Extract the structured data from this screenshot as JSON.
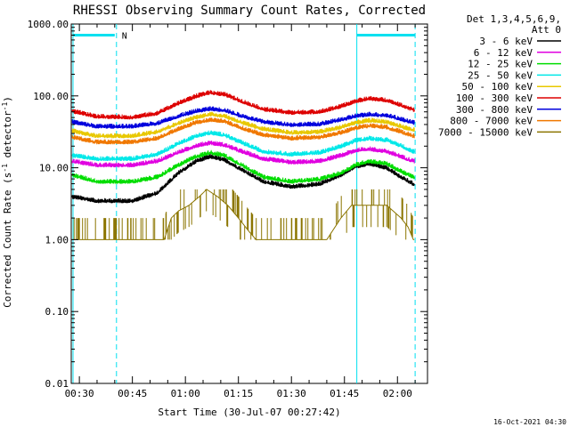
{
  "chart_data": {
    "type": "line",
    "title": "RHESSI Observing Summary Count Rates, Corrected",
    "xlabel": "Start Time (30-Jul-07 00:27:42)",
    "ylabel": "Corrected Count Rate (s-1 detector-1)",
    "ylabel_main": "Corrected Count Rate (s",
    "ylabel_sup1": "-1",
    "ylabel_mid": " detector",
    "ylabel_sup2": "-1",
    "ylabel_end": ")",
    "yscale": "log",
    "ylim": [
      0.01,
      1000
    ],
    "xlim_minutes": [
      27.7,
      128.5
    ],
    "x_ticks": [
      {
        "minute": 30,
        "label": "00:30"
      },
      {
        "minute": 45,
        "label": "00:45"
      },
      {
        "minute": 60,
        "label": "01:00"
      },
      {
        "minute": 75,
        "label": "01:15"
      },
      {
        "minute": 90,
        "label": "01:30"
      },
      {
        "minute": 105,
        "label": "01:45"
      },
      {
        "minute": 120,
        "label": "02:00"
      }
    ],
    "y_ticks": [
      {
        "value": 1000,
        "label": "1000.00"
      },
      {
        "value": 100,
        "label": "100.00"
      },
      {
        "value": 10,
        "label": "10.00"
      },
      {
        "value": 1,
        "label": "1.00"
      },
      {
        "value": 0.1,
        "label": "0.10"
      },
      {
        "value": 0.01,
        "label": "0.01"
      }
    ],
    "legend_header": [
      "Det 1,3,4,5,6,9,",
      "Att 0"
    ],
    "legend_placement": "top-right outside",
    "series": [
      {
        "name": "3 - 6 keV",
        "color": "#000000",
        "points": [
          [
            28,
            4.0
          ],
          [
            35,
            3.5
          ],
          [
            45,
            3.5
          ],
          [
            52,
            4.5
          ],
          [
            58,
            8.5
          ],
          [
            63,
            12.5
          ],
          [
            67,
            14.5
          ],
          [
            71,
            13.0
          ],
          [
            76,
            9.5
          ],
          [
            82,
            6.5
          ],
          [
            90,
            5.5
          ],
          [
            98,
            6.0
          ],
          [
            104,
            8.0
          ],
          [
            108,
            10.5
          ],
          [
            112,
            11.5
          ],
          [
            117,
            10.0
          ],
          [
            121,
            7.5
          ],
          [
            124.5,
            6.0
          ]
        ]
      },
      {
        "name": "6 - 12 keV",
        "color": "#e000e0",
        "points": [
          [
            28,
            12.5
          ],
          [
            35,
            11.0
          ],
          [
            45,
            11.0
          ],
          [
            52,
            12.5
          ],
          [
            58,
            16.5
          ],
          [
            63,
            20.5
          ],
          [
            67,
            22.5
          ],
          [
            71,
            21.0
          ],
          [
            76,
            17.0
          ],
          [
            82,
            13.5
          ],
          [
            90,
            12.0
          ],
          [
            98,
            12.5
          ],
          [
            104,
            15.0
          ],
          [
            108,
            17.5
          ],
          [
            112,
            18.5
          ],
          [
            117,
            17.0
          ],
          [
            121,
            14.5
          ],
          [
            124.5,
            12.5
          ]
        ]
      },
      {
        "name": "12 - 25 keV",
        "color": "#00dd00",
        "points": [
          [
            28,
            8.0
          ],
          [
            35,
            6.5
          ],
          [
            45,
            6.5
          ],
          [
            52,
            7.5
          ],
          [
            58,
            11.0
          ],
          [
            63,
            14.5
          ],
          [
            67,
            16.5
          ],
          [
            71,
            15.0
          ],
          [
            76,
            11.0
          ],
          [
            82,
            7.5
          ],
          [
            90,
            6.5
          ],
          [
            98,
            7.0
          ],
          [
            104,
            8.5
          ],
          [
            108,
            11.0
          ],
          [
            112,
            12.5
          ],
          [
            117,
            11.5
          ],
          [
            121,
            9.0
          ],
          [
            124.5,
            7.5
          ]
        ]
      },
      {
        "name": "25 - 50 keV",
        "color": "#00e8e8",
        "points": [
          [
            28,
            15.0
          ],
          [
            35,
            13.5
          ],
          [
            45,
            13.5
          ],
          [
            52,
            15.5
          ],
          [
            58,
            22.0
          ],
          [
            63,
            28.0
          ],
          [
            67,
            31.0
          ],
          [
            71,
            29.0
          ],
          [
            76,
            22.5
          ],
          [
            82,
            17.0
          ],
          [
            90,
            15.5
          ],
          [
            98,
            16.5
          ],
          [
            104,
            20.0
          ],
          [
            108,
            24.0
          ],
          [
            112,
            26.0
          ],
          [
            117,
            24.5
          ],
          [
            121,
            20.5
          ],
          [
            124.5,
            17.0
          ]
        ]
      },
      {
        "name": "50 - 100 keV",
        "color": "#e8c800",
        "points": [
          [
            28,
            33.0
          ],
          [
            35,
            28.0
          ],
          [
            45,
            28.0
          ],
          [
            52,
            32.0
          ],
          [
            58,
            42.0
          ],
          [
            63,
            51.0
          ],
          [
            67,
            56.0
          ],
          [
            71,
            53.0
          ],
          [
            76,
            43.0
          ],
          [
            82,
            35.0
          ],
          [
            90,
            31.0
          ],
          [
            98,
            32.0
          ],
          [
            104,
            37.0
          ],
          [
            108,
            43.0
          ],
          [
            112,
            46.0
          ],
          [
            117,
            44.0
          ],
          [
            121,
            38.0
          ],
          [
            124.5,
            34.0
          ]
        ]
      },
      {
        "name": "100 - 300 keV",
        "color": "#dd0000",
        "points": [
          [
            28,
            62.0
          ],
          [
            35,
            52.0
          ],
          [
            45,
            51.0
          ],
          [
            52,
            58.0
          ],
          [
            58,
            80.0
          ],
          [
            63,
            100.0
          ],
          [
            67,
            113.0
          ],
          [
            71,
            106.0
          ],
          [
            76,
            85.0
          ],
          [
            82,
            66.0
          ],
          [
            90,
            59.0
          ],
          [
            98,
            61.0
          ],
          [
            104,
            72.0
          ],
          [
            108,
            85.0
          ],
          [
            112,
            93.0
          ],
          [
            117,
            88.0
          ],
          [
            121,
            75.0
          ],
          [
            124.5,
            65.0
          ]
        ]
      },
      {
        "name": "300 - 800 keV",
        "color": "#0000dd",
        "points": [
          [
            28,
            44.0
          ],
          [
            35,
            38.0
          ],
          [
            45,
            38.0
          ],
          [
            52,
            42.0
          ],
          [
            58,
            53.0
          ],
          [
            63,
            62.0
          ],
          [
            67,
            67.0
          ],
          [
            71,
            64.0
          ],
          [
            76,
            53.0
          ],
          [
            82,
            44.0
          ],
          [
            90,
            40.0
          ],
          [
            98,
            41.0
          ],
          [
            104,
            47.0
          ],
          [
            108,
            53.0
          ],
          [
            112,
            56.0
          ],
          [
            117,
            54.0
          ],
          [
            121,
            48.0
          ],
          [
            124.5,
            43.0
          ]
        ]
      },
      {
        "name": "800 - 7000 keV",
        "color": "#f07800",
        "points": [
          [
            28,
            27.0
          ],
          [
            35,
            23.0
          ],
          [
            45,
            23.0
          ],
          [
            52,
            26.0
          ],
          [
            58,
            35.0
          ],
          [
            63,
            43.0
          ],
          [
            67,
            47.0
          ],
          [
            71,
            45.0
          ],
          [
            76,
            36.0
          ],
          [
            82,
            29.0
          ],
          [
            90,
            26.0
          ],
          [
            98,
            27.0
          ],
          [
            104,
            31.0
          ],
          [
            108,
            36.0
          ],
          [
            112,
            39.0
          ],
          [
            117,
            37.0
          ],
          [
            121,
            32.0
          ],
          [
            124.5,
            28.0
          ]
        ]
      },
      {
        "name": "7000 - 15000 keV",
        "color": "#8b7500",
        "points": [
          [
            28,
            1.0
          ],
          [
            40,
            1.0
          ],
          [
            48,
            1.0
          ],
          [
            54,
            1.0
          ],
          [
            56,
            2.0
          ],
          [
            58,
            2.5
          ],
          [
            61,
            3.0
          ],
          [
            64,
            4.0
          ],
          [
            66,
            5.0
          ],
          [
            69,
            4.0
          ],
          [
            72,
            3.0
          ],
          [
            75,
            2.0
          ],
          [
            78,
            1.3
          ],
          [
            80,
            1.0
          ],
          [
            92,
            1.0
          ],
          [
            100,
            1.0
          ],
          [
            104,
            2.0
          ],
          [
            107,
            3.0
          ],
          [
            112,
            3.0
          ],
          [
            117,
            3.0
          ],
          [
            121,
            2.0
          ],
          [
            123,
            1.5
          ],
          [
            124.5,
            1.0
          ]
        ]
      }
    ],
    "annotations": {
      "night_marker_label": "N",
      "vertical_markers_minutes": [
        28.2,
        40.5,
        108.5,
        125.0
      ],
      "bar_markers": [
        {
          "from_minute": 28.2,
          "to_minute": 40.0,
          "value": 700
        },
        {
          "from_minute": 108.5,
          "to_minute": 125.0,
          "value": 700
        }
      ],
      "marker_color": "#00e0f0"
    },
    "footer_date": "16-Oct-2021 04:30"
  }
}
